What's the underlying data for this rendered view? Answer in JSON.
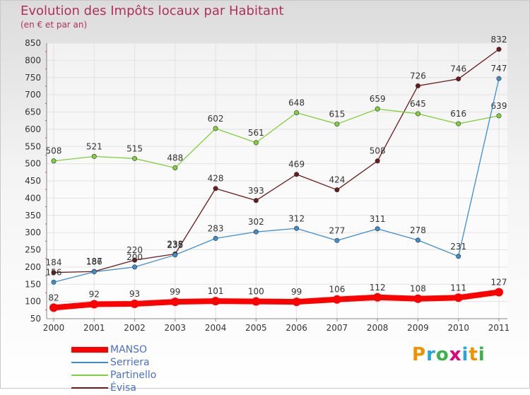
{
  "title": "Evolution des Impôts locaux par Habitant",
  "subtitle": "(en € et par an)",
  "logo": {
    "text": "Proxiti",
    "colors": [
      "#f29100",
      "#2aa6d6",
      "#3cb34a",
      "#e3007a",
      "#2aa6d6",
      "#f29100",
      "#3cb34a"
    ]
  },
  "chart_data": {
    "type": "line",
    "x": [
      "2000",
      "2001",
      "2002",
      "2003",
      "2004",
      "2005",
      "2006",
      "2007",
      "2008",
      "2009",
      "2010",
      "2011"
    ],
    "ylim": [
      50,
      850
    ],
    "yticks": [
      50,
      100,
      150,
      200,
      250,
      300,
      350,
      400,
      450,
      500,
      550,
      600,
      650,
      700,
      750,
      800,
      850
    ],
    "grid": true,
    "legend_position": "bottom-left",
    "series": [
      {
        "name": "MANSO",
        "color": "#ff0000",
        "label_color": "#4a6fd0",
        "values": [
          82,
          92,
          93,
          99,
          101,
          100,
          99,
          106,
          112,
          108,
          111,
          127
        ]
      },
      {
        "name": "Serriera",
        "color": "#3d8ecf",
        "label_color": "#4a6fd0",
        "values": [
          156,
          186,
          200,
          235,
          283,
          302,
          312,
          277,
          311,
          278,
          231,
          747
        ]
      },
      {
        "name": "Partinello",
        "color": "#7fd13b",
        "label_color": "#4a6fd0",
        "values": [
          508,
          521,
          515,
          488,
          602,
          561,
          648,
          615,
          659,
          645,
          616,
          639
        ]
      },
      {
        "name": "Évisa",
        "color": "#6b1a1a",
        "label_color": "#4a6fd0",
        "values": [
          184,
          187,
          220,
          238,
          428,
          393,
          469,
          424,
          508,
          726,
          746,
          832
        ]
      }
    ]
  }
}
